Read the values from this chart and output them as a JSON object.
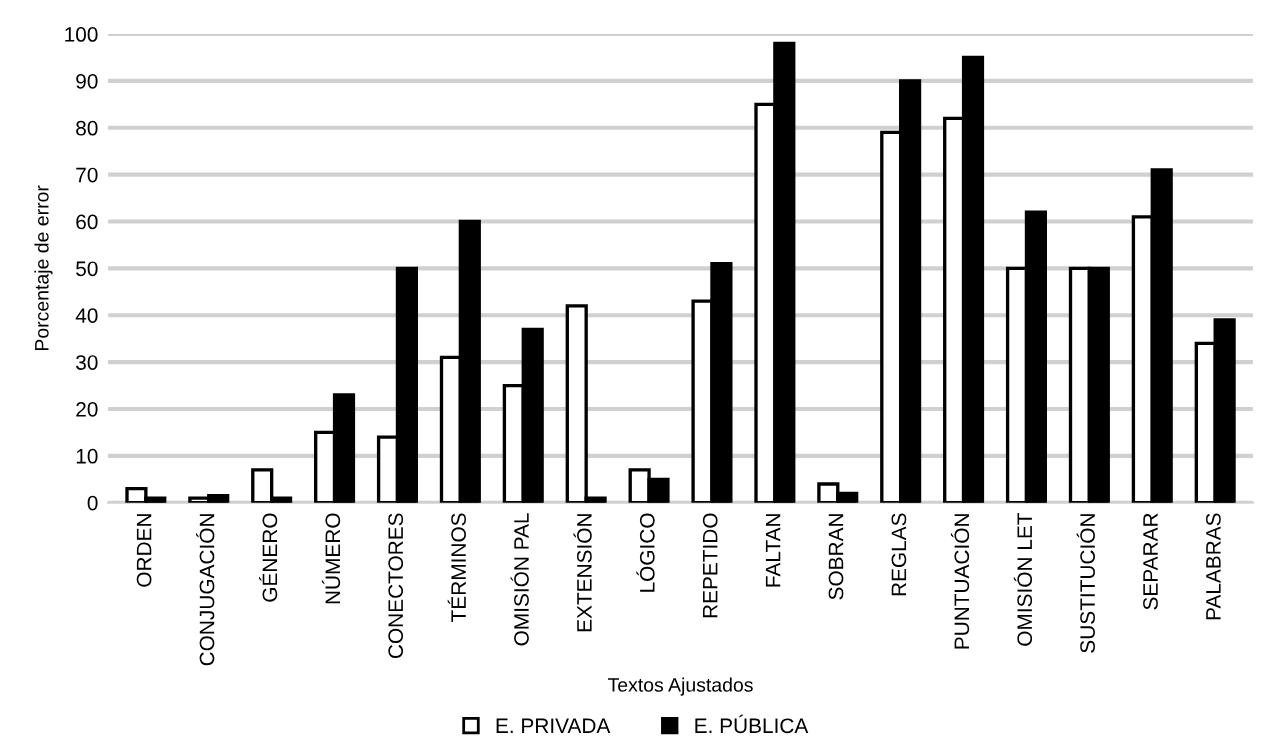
{
  "chart_data": {
    "type": "bar",
    "xlabel": "Textos Ajustados",
    "ylabel": "Porcentaje de error",
    "categories": [
      "ORDEN",
      "CONJUGACIÓN",
      "GÉNERO",
      "NÚMERO",
      "CONECTORES",
      "TÉRMINOS",
      "OMISIÓN PAL",
      "EXTENSIÓN",
      "LÓGICO",
      "REPETIDO",
      "FALTAN",
      "SOBRAN",
      "REGLAS",
      "PUNTUACIÓN",
      "OMISIÓN LET",
      "SUSTITUCIÓN",
      "SEPARAR",
      "PALABRAS"
    ],
    "series": [
      {
        "name": "E. PRIVADA",
        "color": "#ffffff",
        "values": [
          3,
          1,
          7,
          15,
          14,
          31,
          25,
          42,
          7,
          43,
          85,
          4,
          79,
          82,
          50,
          50,
          61,
          34
        ]
      },
      {
        "name": "E. PÚBLICA",
        "color": "#000000",
        "values": [
          1,
          1.5,
          1,
          23,
          50,
          60,
          37,
          1,
          5,
          51,
          98,
          2,
          90,
          95,
          62,
          50,
          71,
          39
        ]
      }
    ],
    "ylim": [
      0,
      100
    ],
    "yticks": [
      0,
      10,
      20,
      30,
      40,
      50,
      60,
      70,
      80,
      90,
      100
    ],
    "grid": "y",
    "legend": "bottom"
  }
}
